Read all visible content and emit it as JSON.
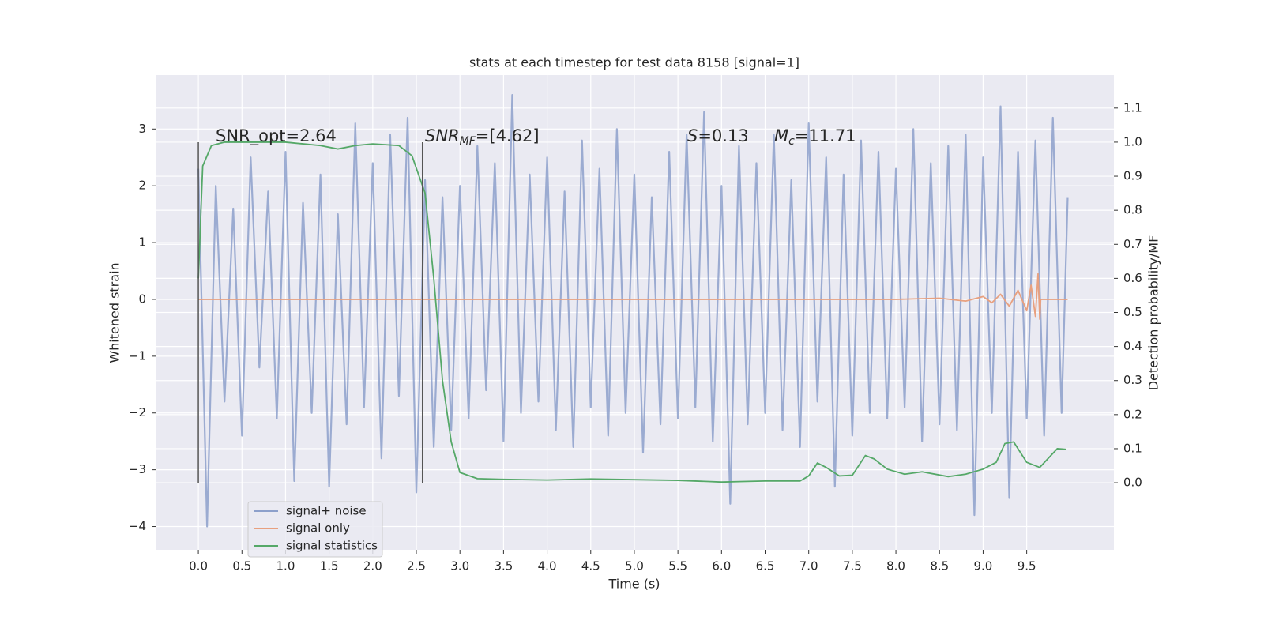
{
  "chart_data": {
    "type": "line",
    "title": "stats at each timestep for test data 8158 [signal=1]",
    "x_label": "Time (s)",
    "y_label": "Whitened strain",
    "y2_label": "Detection probability/MF",
    "annotations": [
      {
        "parts": [
          "SNR_opt=2.64"
        ]
      },
      {
        "parts": [
          "SNR",
          "MF",
          "=[4.62]"
        ]
      },
      {
        "parts": [
          "S",
          "=0.13"
        ]
      },
      {
        "parts": [
          "M",
          "c",
          "=11.71"
        ]
      }
    ],
    "vlines": [
      0,
      2.57
    ],
    "grid": true,
    "legend": "lower left",
    "xlim": [
      -0.49,
      10.5
    ],
    "ylim": [
      -4.41,
      3.95
    ],
    "y2lim": [
      -0.197,
      1.197
    ],
    "xticks": [
      {
        "value": 0,
        "label": "0.0"
      },
      {
        "value": 0.5,
        "label": "0.5"
      },
      {
        "value": 1,
        "label": "1.0"
      },
      {
        "value": 1.5,
        "label": "1.5"
      },
      {
        "value": 2,
        "label": "2.0"
      },
      {
        "value": 2.5,
        "label": "2.5"
      },
      {
        "value": 3,
        "label": "3.0"
      },
      {
        "value": 3.5,
        "label": "3.5"
      },
      {
        "value": 4,
        "label": "4.0"
      },
      {
        "value": 4.5,
        "label": "4.5"
      },
      {
        "value": 5,
        "label": "5.0"
      },
      {
        "value": 5.5,
        "label": "5.5"
      },
      {
        "value": 6,
        "label": "6.0"
      },
      {
        "value": 6.5,
        "label": "6.5"
      },
      {
        "value": 7,
        "label": "7.0"
      },
      {
        "value": 7.5,
        "label": "7.5"
      },
      {
        "value": 8,
        "label": "8.0"
      },
      {
        "value": 8.5,
        "label": "8.5"
      },
      {
        "value": 9,
        "label": "9.0"
      },
      {
        "value": 9.5,
        "label": "9.5"
      }
    ],
    "yticks": [
      {
        "value": -4,
        "label": "−4"
      },
      {
        "value": -3,
        "label": "−3"
      },
      {
        "value": -2,
        "label": "−2"
      },
      {
        "value": -1,
        "label": "−1"
      },
      0,
      1,
      2,
      3
    ],
    "y2ticks": [
      {
        "value": 0,
        "label": "0.0"
      },
      {
        "value": 0.1,
        "label": "0.1"
      },
      {
        "value": 0.2,
        "label": "0.2"
      },
      {
        "value": 0.3,
        "label": "0.3"
      },
      {
        "value": 0.4,
        "label": "0.4"
      },
      {
        "value": 0.5,
        "label": "0.5"
      },
      {
        "value": 0.6,
        "label": "0.6"
      },
      {
        "value": 0.7,
        "label": "0.7"
      },
      {
        "value": 0.8,
        "label": "0.8"
      },
      {
        "value": 0.9,
        "label": "0.9"
      },
      {
        "value": 1,
        "label": "1.0"
      },
      {
        "value": 1.1,
        "label": "1.1"
      }
    ],
    "series": [
      {
        "name": "signal+ noise",
        "color": "#8da0cb",
        "x": [
          0,
          0.1,
          0.2,
          0.3,
          0.4,
          0.5,
          0.6,
          0.7,
          0.8,
          0.9,
          1,
          1.1,
          1.2,
          1.3,
          1.4,
          1.5,
          1.6,
          1.7,
          1.8,
          1.9,
          2,
          2.1,
          2.2,
          2.3,
          2.4,
          2.5,
          2.6,
          2.7,
          2.8,
          2.9,
          3,
          3.1,
          3.2,
          3.3,
          3.4,
          3.5,
          3.6,
          3.7,
          3.8,
          3.9,
          4,
          4.1,
          4.2,
          4.3,
          4.4,
          4.5,
          4.6,
          4.7,
          4.8,
          4.9,
          5,
          5.1,
          5.2,
          5.3,
          5.4,
          5.5,
          5.6,
          5.7,
          5.8,
          5.9,
          6,
          6.1,
          6.2,
          6.3,
          6.4,
          6.5,
          6.6,
          6.7,
          6.8,
          6.9,
          7,
          7.1,
          7.2,
          7.3,
          7.4,
          7.5,
          7.6,
          7.7,
          7.8,
          7.9,
          8,
          8.1,
          8.2,
          8.3,
          8.4,
          8.5,
          8.6,
          8.7,
          8.8,
          8.9,
          9,
          9.1,
          9.2,
          9.3,
          9.4,
          9.5,
          9.6,
          9.7,
          9.8,
          9.9,
          9.97
        ],
        "values": [
          2.3,
          -4.0,
          2.0,
          -1.8,
          1.6,
          -2.4,
          2.5,
          -1.2,
          1.9,
          -2.1,
          2.6,
          -3.2,
          1.7,
          -2.0,
          2.2,
          -3.3,
          1.5,
          -2.2,
          3.1,
          -1.9,
          2.4,
          -2.8,
          2.9,
          -1.7,
          3.2,
          -3.4,
          2.1,
          -2.6,
          1.8,
          -2.3,
          2.0,
          -2.1,
          2.7,
          -1.6,
          2.4,
          -2.5,
          3.6,
          -2.0,
          2.2,
          -1.8,
          2.5,
          -2.3,
          1.9,
          -2.6,
          2.8,
          -1.9,
          2.3,
          -2.4,
          3.0,
          -2.0,
          2.2,
          -2.7,
          1.8,
          -2.2,
          2.6,
          -2.1,
          2.9,
          -1.9,
          3.3,
          -2.5,
          2.0,
          -3.6,
          2.7,
          -2.2,
          2.4,
          -2.0,
          2.9,
          -2.3,
          2.1,
          -2.6,
          3.1,
          -1.8,
          2.5,
          -3.3,
          2.2,
          -2.4,
          2.8,
          -2.0,
          2.6,
          -2.1,
          2.3,
          -1.9,
          3.0,
          -2.5,
          2.4,
          -2.2,
          2.7,
          -2.3,
          2.9,
          -3.8,
          2.5,
          -2.0,
          3.4,
          -3.5,
          2.6,
          -2.1,
          2.8,
          -2.4,
          3.2,
          -2.0,
          1.8
        ]
      },
      {
        "name": "signal only",
        "color": "#e8a07f",
        "x": [
          0,
          8.0,
          8.5,
          8.8,
          9.0,
          9.1,
          9.2,
          9.3,
          9.4,
          9.5,
          9.55,
          9.6,
          9.63,
          9.65,
          9.66,
          9.97
        ],
        "values": [
          0,
          0,
          0.02,
          -0.03,
          0.05,
          -0.06,
          0.09,
          -0.12,
          0.16,
          -0.2,
          0.25,
          -0.3,
          0.45,
          -0.35,
          0,
          0
        ]
      },
      {
        "name": "signal statistics",
        "color": "#55a868",
        "axis": "y2",
        "x": [
          0,
          0.05,
          0.15,
          0.3,
          1.0,
          1.4,
          1.6,
          1.8,
          2.0,
          2.3,
          2.45,
          2.6,
          2.7,
          2.8,
          2.9,
          3.0,
          3.2,
          3.5,
          4.0,
          4.5,
          5.0,
          5.5,
          6.0,
          6.5,
          6.9,
          7.0,
          7.1,
          7.2,
          7.35,
          7.5,
          7.65,
          7.75,
          7.9,
          8.1,
          8.3,
          8.6,
          8.8,
          9.0,
          9.15,
          9.25,
          9.35,
          9.5,
          9.65,
          9.85,
          9.95
        ],
        "values": [
          0.6,
          0.93,
          0.99,
          1.0,
          1.0,
          0.99,
          0.98,
          0.99,
          0.995,
          0.99,
          0.96,
          0.85,
          0.6,
          0.3,
          0.12,
          0.03,
          0.012,
          0.01,
          0.008,
          0.011,
          0.009,
          0.007,
          0.002,
          0.005,
          0.005,
          0.02,
          0.058,
          0.045,
          0.02,
          0.022,
          0.08,
          0.07,
          0.04,
          0.025,
          0.032,
          0.018,
          0.025,
          0.04,
          0.06,
          0.115,
          0.12,
          0.06,
          0.045,
          0.1,
          0.098
        ]
      }
    ]
  }
}
